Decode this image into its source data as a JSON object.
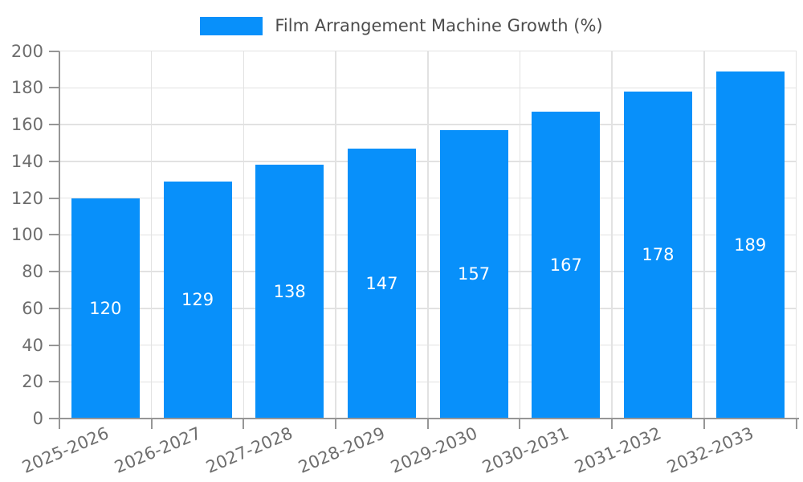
{
  "legend": {
    "label": "Film Arrangement Machine Growth (%)"
  },
  "colors": {
    "bar": "#0890FA",
    "grid": "#E2E2E2",
    "axis": "#969696",
    "tick_label": "#6E6E6E",
    "legend_text": "#4D4D4D",
    "value_label": "#FFFFFF",
    "background": "#FFFFFF"
  },
  "chart_data": {
    "type": "bar",
    "title": "Film Arrangement Machine Growth (%)",
    "categories": [
      "2025-2026",
      "2026-2027",
      "2027-2028",
      "2028-2029",
      "2029-2030",
      "2030-2031",
      "2031-2032",
      "2032-2033"
    ],
    "values": [
      120,
      129,
      138,
      147,
      157,
      167,
      178,
      189
    ],
    "xlabel": "",
    "ylabel": "",
    "ylim": [
      0,
      200
    ],
    "yticks": [
      0,
      20,
      40,
      60,
      80,
      100,
      120,
      140,
      160,
      180,
      200
    ],
    "grid": true,
    "legend_position": "top-center",
    "bar_value_labels": "inside-center",
    "x_label_rotation_deg": -23
  }
}
